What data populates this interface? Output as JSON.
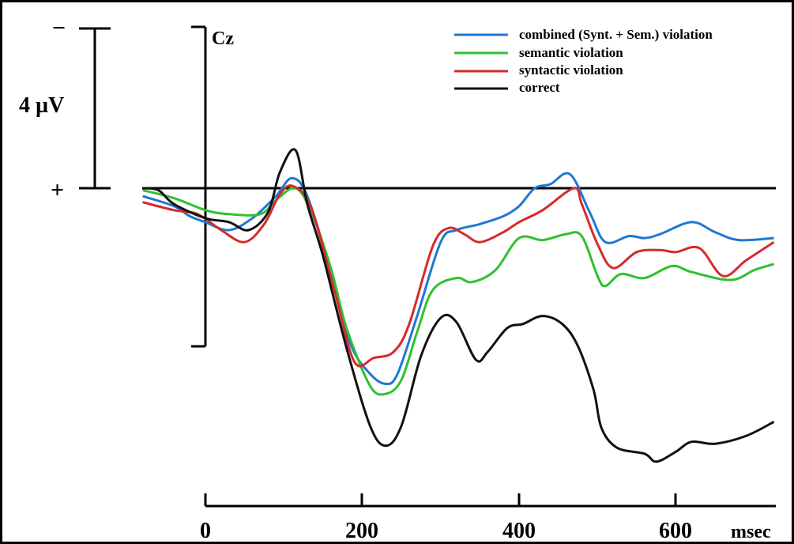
{
  "chart_data": {
    "type": "line",
    "channel_label": "Cz",
    "scale_bar": {
      "label": "4 µV",
      "minus_label": "−",
      "plus_label": "+",
      "value": 4,
      "unit": "µV"
    },
    "xlabel": "msec",
    "x_ticks": [
      "0",
      "200",
      "400",
      "600"
    ],
    "xlim": [
      -80,
      725
    ],
    "ylim": [
      -8,
      2
    ],
    "y_axis_note": "negative plotted up",
    "legend_position": "top-right",
    "series": [
      {
        "name": "combined (Synt. + Sem.) violation",
        "color": "#1f77d4",
        "points": [
          [
            -80,
            -0.2
          ],
          [
            -40,
            -0.45
          ],
          [
            -20,
            -0.7
          ],
          [
            0,
            -0.85
          ],
          [
            30,
            -1.05
          ],
          [
            60,
            -0.75
          ],
          [
            90,
            -0.2
          ],
          [
            110,
            0.25
          ],
          [
            130,
            -0.2
          ],
          [
            160,
            -2.1
          ],
          [
            185,
            -3.9
          ],
          [
            210,
            -4.65
          ],
          [
            230,
            -4.9
          ],
          [
            245,
            -4.65
          ],
          [
            270,
            -3.2
          ],
          [
            300,
            -1.35
          ],
          [
            320,
            -1.05
          ],
          [
            350,
            -0.9
          ],
          [
            380,
            -0.7
          ],
          [
            400,
            -0.45
          ],
          [
            420,
            0.0
          ],
          [
            440,
            0.1
          ],
          [
            465,
            0.35
          ],
          [
            490,
            -0.6
          ],
          [
            510,
            -1.35
          ],
          [
            540,
            -1.2
          ],
          [
            560,
            -1.25
          ],
          [
            580,
            -1.15
          ],
          [
            620,
            -0.85
          ],
          [
            650,
            -1.1
          ],
          [
            680,
            -1.3
          ],
          [
            725,
            -1.25
          ]
        ]
      },
      {
        "name": "semantic violation",
        "color": "#2ec22e",
        "points": [
          [
            -80,
            -0.05
          ],
          [
            -40,
            -0.25
          ],
          [
            0,
            -0.55
          ],
          [
            30,
            -0.65
          ],
          [
            70,
            -0.65
          ],
          [
            90,
            -0.3
          ],
          [
            115,
            0.0
          ],
          [
            135,
            -0.6
          ],
          [
            160,
            -2.0
          ],
          [
            180,
            -3.5
          ],
          [
            210,
            -4.95
          ],
          [
            230,
            -5.15
          ],
          [
            250,
            -4.8
          ],
          [
            270,
            -3.6
          ],
          [
            290,
            -2.55
          ],
          [
            320,
            -2.25
          ],
          [
            340,
            -2.35
          ],
          [
            370,
            -2.05
          ],
          [
            400,
            -1.25
          ],
          [
            430,
            -1.3
          ],
          [
            460,
            -1.15
          ],
          [
            480,
            -1.2
          ],
          [
            500,
            -2.2
          ],
          [
            510,
            -2.45
          ],
          [
            530,
            -2.15
          ],
          [
            560,
            -2.25
          ],
          [
            595,
            -1.95
          ],
          [
            620,
            -2.1
          ],
          [
            670,
            -2.3
          ],
          [
            700,
            -2.05
          ],
          [
            725,
            -1.9
          ]
        ]
      },
      {
        "name": "syntactic violation",
        "color": "#d62a2a",
        "points": [
          [
            -80,
            -0.35
          ],
          [
            -40,
            -0.55
          ],
          [
            -10,
            -0.65
          ],
          [
            20,
            -1.05
          ],
          [
            50,
            -1.35
          ],
          [
            75,
            -0.9
          ],
          [
            95,
            -0.15
          ],
          [
            112,
            0.05
          ],
          [
            135,
            -0.5
          ],
          [
            165,
            -2.6
          ],
          [
            190,
            -4.35
          ],
          [
            215,
            -4.25
          ],
          [
            240,
            -4.1
          ],
          [
            260,
            -3.4
          ],
          [
            290,
            -1.45
          ],
          [
            310,
            -1.0
          ],
          [
            330,
            -1.15
          ],
          [
            350,
            -1.35
          ],
          [
            380,
            -1.1
          ],
          [
            400,
            -0.85
          ],
          [
            430,
            -0.55
          ],
          [
            470,
            0.0
          ],
          [
            480,
            -0.4
          ],
          [
            500,
            -1.4
          ],
          [
            520,
            -2.0
          ],
          [
            550,
            -1.6
          ],
          [
            580,
            -1.55
          ],
          [
            600,
            -1.6
          ],
          [
            630,
            -1.5
          ],
          [
            660,
            -2.2
          ],
          [
            690,
            -1.8
          ],
          [
            725,
            -1.35
          ]
        ]
      },
      {
        "name": "correct",
        "color": "#111111",
        "points": [
          [
            -80,
            0.0
          ],
          [
            -60,
            -0.05
          ],
          [
            -40,
            -0.4
          ],
          [
            0,
            -0.75
          ],
          [
            30,
            -0.85
          ],
          [
            55,
            -1.05
          ],
          [
            80,
            -0.6
          ],
          [
            95,
            0.4
          ],
          [
            115,
            0.95
          ],
          [
            130,
            -0.4
          ],
          [
            150,
            -1.7
          ],
          [
            180,
            -4.0
          ],
          [
            210,
            -5.95
          ],
          [
            230,
            -6.45
          ],
          [
            250,
            -5.95
          ],
          [
            275,
            -4.2
          ],
          [
            300,
            -3.25
          ],
          [
            320,
            -3.35
          ],
          [
            345,
            -4.3
          ],
          [
            360,
            -4.1
          ],
          [
            385,
            -3.5
          ],
          [
            405,
            -3.4
          ],
          [
            430,
            -3.2
          ],
          [
            455,
            -3.4
          ],
          [
            475,
            -3.95
          ],
          [
            495,
            -5.05
          ],
          [
            505,
            -6.0
          ],
          [
            525,
            -6.5
          ],
          [
            560,
            -6.65
          ],
          [
            575,
            -6.85
          ],
          [
            600,
            -6.6
          ],
          [
            620,
            -6.35
          ],
          [
            650,
            -6.4
          ],
          [
            690,
            -6.2
          ],
          [
            725,
            -5.85
          ]
        ]
      }
    ]
  }
}
